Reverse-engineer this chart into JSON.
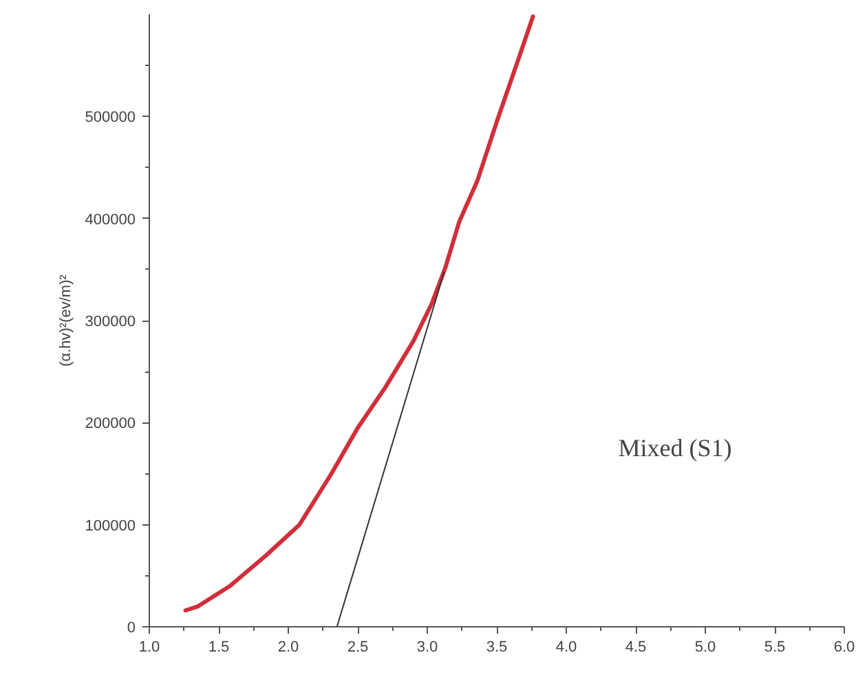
{
  "chart_data": {
    "type": "line",
    "ylabel": "(α.hv)²(ev/m)²",
    "annotations": [
      "Mixed (S1)"
    ],
    "xlim": [
      1.0,
      6.0
    ],
    "ylim": [
      0,
      600000
    ],
    "xticks": [
      {
        "value": 1.0,
        "label": "1.0"
      },
      {
        "value": 1.5,
        "label": "1.5"
      },
      {
        "value": 2.0,
        "label": "2.0"
      },
      {
        "value": 2.5,
        "label": "2.5"
      },
      {
        "value": 3.0,
        "label": "3.0"
      },
      {
        "value": 3.5,
        "label": "3.5"
      },
      {
        "value": 4.0,
        "label": "4.0"
      },
      {
        "value": 4.5,
        "label": "4.5"
      },
      {
        "value": 5.0,
        "label": "5.0"
      },
      {
        "value": 5.5,
        "label": "5.5"
      },
      {
        "value": 6.0,
        "label": "6.0"
      }
    ],
    "yticks": [
      0,
      100000,
      200000,
      300000,
      400000,
      500000
    ],
    "grid": false,
    "series": [
      {
        "color": "#d02f3a",
        "x": [
          1.26,
          1.35,
          1.58,
          1.84,
          2.08,
          2.31,
          2.5,
          2.7,
          2.9,
          3.03,
          3.13,
          3.23,
          3.36,
          3.5,
          3.66,
          3.76
        ],
        "values": [
          16000,
          20000,
          40000,
          70000,
          100000,
          150000,
          195000,
          235000,
          280000,
          316000,
          352000,
          397000,
          437000,
          495000,
          558000,
          598000
        ]
      },
      {
        "type": "line",
        "color": "#333333",
        "x": [
          2.35,
          3.12
        ],
        "values": [
          0,
          347000
        ]
      }
    ]
  }
}
